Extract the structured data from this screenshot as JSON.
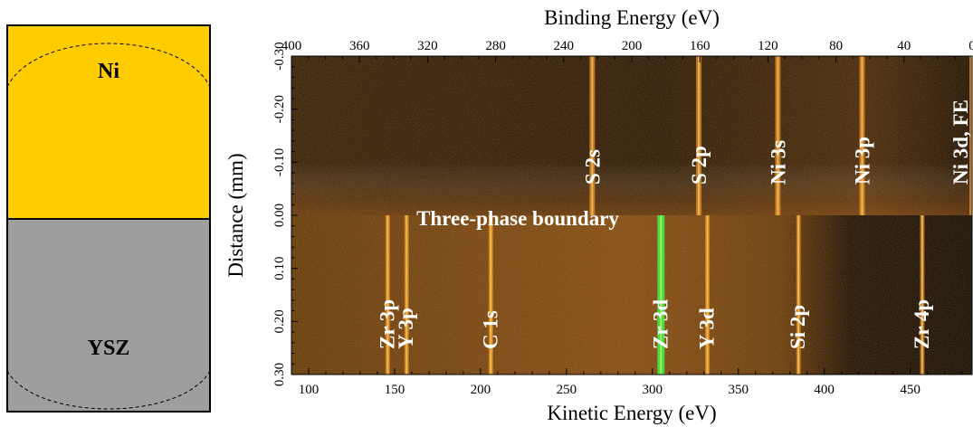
{
  "schematic": {
    "top_label": "Ni",
    "bottom_label": "YSZ",
    "top_color": "#ffcc00",
    "bottom_color": "#9e9e9e"
  },
  "chart_data": {
    "type": "heatmap",
    "xlabel": "Kinetic Energy (eV)",
    "x2label": "Binding Energy (eV)",
    "ylabel": "Distance (mm)",
    "xlim": [
      90,
      486
    ],
    "x2lim": [
      400,
      0
    ],
    "ylim": [
      -0.3,
      0.3
    ],
    "y_inverted": true,
    "x_ticks": [
      100,
      150,
      200,
      250,
      300,
      350,
      400,
      450
    ],
    "x2_ticks": [
      400,
      360,
      320,
      280,
      240,
      200,
      160,
      120,
      80,
      40,
      0
    ],
    "y_ticks": [
      "-0.30",
      "-0.20",
      "-0.10",
      "0.00",
      "0.10",
      "0.20",
      "0.30"
    ],
    "boundary_label": "Three-phase boundary",
    "boundary_distance": 0.0,
    "colormap": [
      "#050200",
      "#4a2606",
      "#b25c10",
      "#ff9a30",
      "#ffe060",
      "#44e040"
    ],
    "peaks_top": [
      {
        "label": "S 2s",
        "ke": 265
      },
      {
        "label": "S 2p",
        "ke": 327
      },
      {
        "label": "Ni 3s",
        "ke": 373
      },
      {
        "label": "Ni 3p",
        "ke": 422
      },
      {
        "label": "Ni 3d, FE",
        "ke": 486
      }
    ],
    "peaks_bottom": [
      {
        "label": "Zr 3p",
        "ke": 146
      },
      {
        "label": "Y 3p",
        "ke": 157
      },
      {
        "label": "C 1s",
        "ke": 206
      },
      {
        "label": "Zr 3d",
        "ke": 305
      },
      {
        "label": "Y 3d",
        "ke": 332
      },
      {
        "label": "Si 2p",
        "ke": 385
      },
      {
        "label": "Zr 4p",
        "ke": 457
      }
    ]
  }
}
